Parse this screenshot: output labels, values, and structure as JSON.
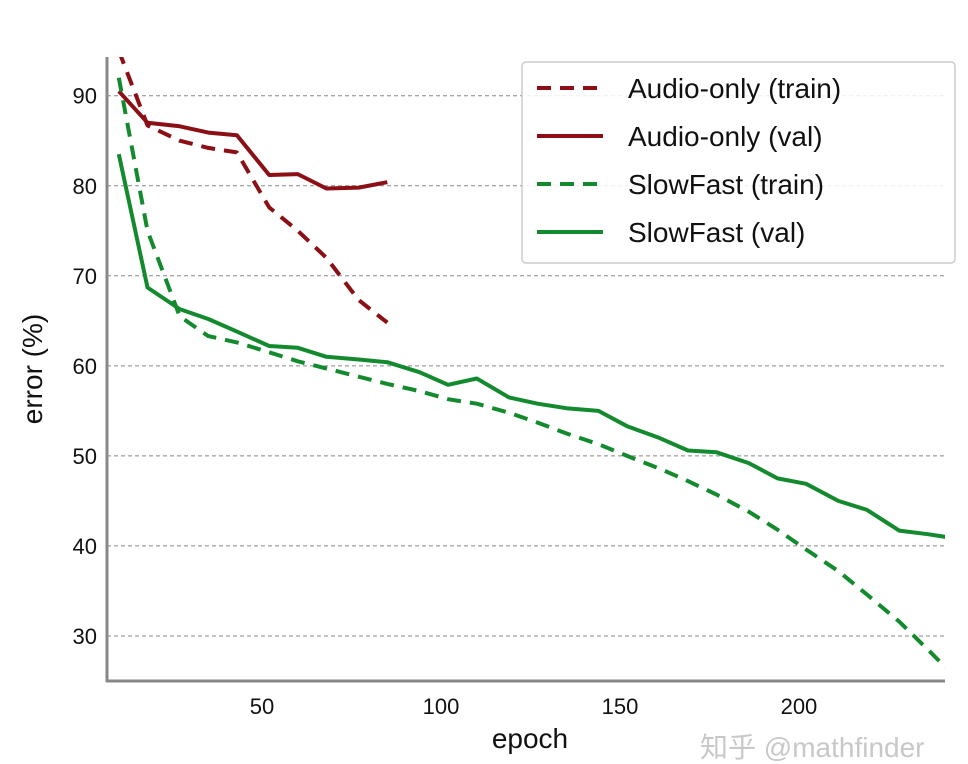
{
  "chart_data": {
    "type": "line",
    "title": "",
    "xlabel": "epoch",
    "ylabel": "error (%)",
    "xlim": [
      6.7,
      240.8
    ],
    "ylim": [
      25,
      94.3
    ],
    "xticks": [
      50,
      100,
      150,
      200
    ],
    "yticks": [
      30,
      40,
      50,
      60,
      70,
      80,
      90
    ],
    "grid": "horizontal dashed",
    "legend_position": "top-right",
    "series": [
      {
        "name": "Audio-only (train)",
        "color": "#8b0f14",
        "style": "dashed",
        "x": [
          10,
          18,
          27,
          35,
          43,
          52,
          60,
          68,
          77,
          85
        ],
        "y": [
          95,
          86.7,
          85,
          84.2,
          83.7,
          77.6,
          75,
          72,
          67.3,
          64.8
        ]
      },
      {
        "name": "Audio-only (val)",
        "color": "#8b0f14",
        "style": "solid",
        "x": [
          10,
          18,
          27,
          35,
          43,
          52,
          60,
          68,
          77,
          85
        ],
        "y": [
          90.5,
          87,
          86.6,
          85.9,
          85.6,
          81.2,
          81.3,
          79.7,
          79.8,
          80.4
        ]
      },
      {
        "name": "SlowFast (train)",
        "color": "#138a2e",
        "style": "dashed",
        "x": [
          10,
          18,
          27,
          35,
          43,
          52,
          60,
          68,
          77,
          85,
          94,
          102,
          110,
          119,
          127,
          135,
          144,
          152,
          161,
          169,
          177,
          186,
          194,
          202,
          211,
          219,
          228,
          236,
          241
        ],
        "y": [
          92,
          75,
          65.5,
          63.3,
          62.6,
          61.5,
          60.5,
          59.7,
          58.8,
          58,
          57.2,
          56.3,
          55.8,
          54.8,
          53.7,
          52.5,
          51.3,
          50,
          48.6,
          47.2,
          45.7,
          43.8,
          41.8,
          39.6,
          37.2,
          34.6,
          31.6,
          28.5,
          26.5
        ]
      },
      {
        "name": "SlowFast (val)",
        "color": "#138a2e",
        "style": "solid",
        "x": [
          10,
          18,
          27,
          35,
          43,
          52,
          60,
          68,
          77,
          85,
          94,
          102,
          110,
          119,
          127,
          135,
          144,
          152,
          161,
          169,
          177,
          186,
          194,
          202,
          211,
          219,
          228,
          236,
          241
        ],
        "y": [
          83.5,
          68.7,
          66.3,
          65.2,
          63.8,
          62.2,
          62,
          61,
          60.7,
          60.4,
          59.3,
          57.9,
          58.6,
          56.5,
          55.8,
          55.3,
          55,
          53.3,
          52,
          50.6,
          50.4,
          49.2,
          47.5,
          46.9,
          45,
          44,
          41.7,
          41.3,
          41
        ]
      }
    ]
  },
  "watermark": "知乎 @mathfinder"
}
